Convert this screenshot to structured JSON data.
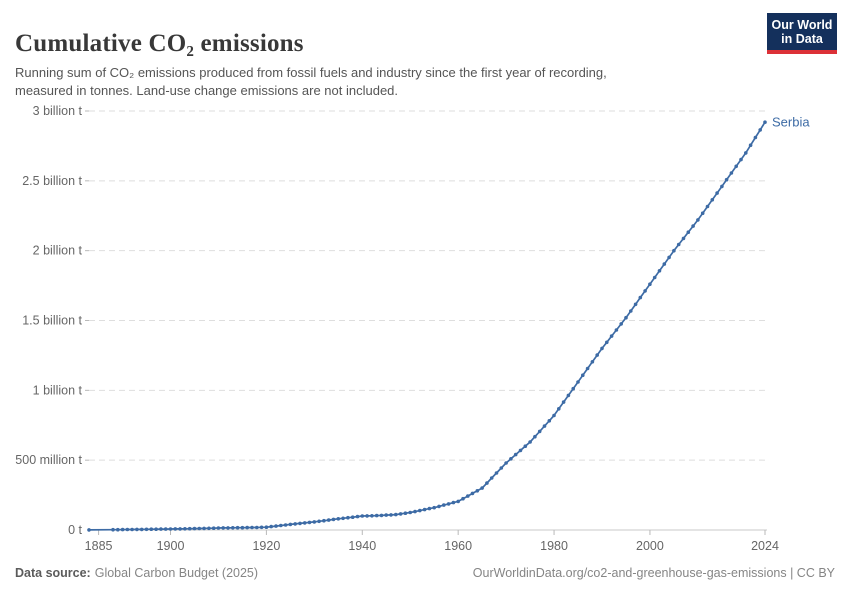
{
  "header": {
    "title": "Cumulative CO₂ emissions",
    "subtitle_line1": "Running sum of CO₂ emissions produced from fossil fuels and industry since the first year of recording,",
    "subtitle_line2": "measured in tonnes. Land-use change emissions are not included.",
    "logo": {
      "line1": "Our World",
      "line2": "in Data",
      "bg_color": "#14305c",
      "accent_color": "#dc3137",
      "text_color": "#ffffff"
    }
  },
  "footer": {
    "source_label": "Data source:",
    "source_value": "Global Carbon Budget (2025)",
    "rights": "OurWorldinData.org/co2-and-greenhouse-gas-emissions | CC BY"
  },
  "chart_data": {
    "type": "line",
    "title": "Cumulative CO₂ emissions",
    "value_unit": "million tonnes",
    "xlim": [
      1883,
      2024
    ],
    "ylim": [
      0,
      3000
    ],
    "grid": "horizontal-dashed",
    "legend_position": "end-of-line-label",
    "x_ticks": [
      1885,
      1900,
      1920,
      1940,
      1960,
      1980,
      2000,
      2024
    ],
    "y_ticks": [
      {
        "value": 0,
        "label": "0 t"
      },
      {
        "value": 500,
        "label": "500 million t"
      },
      {
        "value": 1000,
        "label": "1 billion t"
      },
      {
        "value": 1500,
        "label": "1.5 billion t"
      },
      {
        "value": 2000,
        "label": "2 billion t"
      },
      {
        "value": 2500,
        "label": "2.5 billion t"
      },
      {
        "value": 3000,
        "label": "3 billion t"
      }
    ],
    "axis_color": "#c8c8c8",
    "grid_color": "#dedede",
    "tick_label_color": "#666666",
    "series": [
      {
        "name": "Serbia",
        "color": "#3d6ba5",
        "points": [
          [
            1883,
            1
          ],
          [
            1888,
            2
          ],
          [
            1889,
            2.5
          ],
          [
            1890,
            3
          ],
          [
            1891,
            3.4
          ],
          [
            1892,
            3.8
          ],
          [
            1893,
            4.2
          ],
          [
            1894,
            4.6
          ],
          [
            1895,
            5
          ],
          [
            1896,
            5.4
          ],
          [
            1897,
            5.8
          ],
          [
            1898,
            6.2
          ],
          [
            1899,
            6.6
          ],
          [
            1900,
            7
          ],
          [
            1901,
            7.6
          ],
          [
            1902,
            8.2
          ],
          [
            1903,
            8.8
          ],
          [
            1904,
            9.4
          ],
          [
            1905,
            10
          ],
          [
            1906,
            10.8
          ],
          [
            1907,
            11.6
          ],
          [
            1908,
            12.4
          ],
          [
            1909,
            13.2
          ],
          [
            1910,
            14
          ],
          [
            1911,
            14.7
          ],
          [
            1912,
            15.3
          ],
          [
            1913,
            16
          ],
          [
            1914,
            16.4
          ],
          [
            1915,
            16.8
          ],
          [
            1916,
            17.2
          ],
          [
            1917,
            17.6
          ],
          [
            1918,
            18
          ],
          [
            1919,
            19
          ],
          [
            1920,
            20
          ],
          [
            1921,
            24
          ],
          [
            1922,
            28
          ],
          [
            1923,
            32
          ],
          [
            1924,
            36
          ],
          [
            1925,
            40
          ],
          [
            1926,
            43.6
          ],
          [
            1927,
            47.2
          ],
          [
            1928,
            50.8
          ],
          [
            1929,
            54.4
          ],
          [
            1930,
            58
          ],
          [
            1931,
            62.4
          ],
          [
            1932,
            66.8
          ],
          [
            1933,
            71.2
          ],
          [
            1934,
            75.6
          ],
          [
            1935,
            80
          ],
          [
            1936,
            84
          ],
          [
            1937,
            88
          ],
          [
            1938,
            92
          ],
          [
            1939,
            96
          ],
          [
            1940,
            100
          ],
          [
            1941,
            101
          ],
          [
            1942,
            102
          ],
          [
            1943,
            103
          ],
          [
            1944,
            104.8
          ],
          [
            1945,
            106.5
          ],
          [
            1946,
            108.2
          ],
          [
            1947,
            110
          ],
          [
            1948,
            115
          ],
          [
            1949,
            120
          ],
          [
            1950,
            125
          ],
          [
            1951,
            132
          ],
          [
            1952,
            139
          ],
          [
            1953,
            146
          ],
          [
            1954,
            153
          ],
          [
            1955,
            160
          ],
          [
            1956,
            169
          ],
          [
            1957,
            178
          ],
          [
            1958,
            187
          ],
          [
            1959,
            196
          ],
          [
            1960,
            205
          ],
          [
            1961,
            224
          ],
          [
            1962,
            243
          ],
          [
            1963,
            262
          ],
          [
            1964,
            281
          ],
          [
            1965,
            300
          ],
          [
            1966,
            336
          ],
          [
            1967,
            372
          ],
          [
            1968,
            408
          ],
          [
            1969,
            444
          ],
          [
            1970,
            480
          ],
          [
            1971,
            510
          ],
          [
            1972,
            540
          ],
          [
            1973,
            570
          ],
          [
            1974,
            600
          ],
          [
            1975,
            630
          ],
          [
            1976,
            668
          ],
          [
            1977,
            706
          ],
          [
            1978,
            744
          ],
          [
            1979,
            782
          ],
          [
            1980,
            820
          ],
          [
            1981,
            868
          ],
          [
            1982,
            916
          ],
          [
            1983,
            964
          ],
          [
            1984,
            1012
          ],
          [
            1985,
            1060
          ],
          [
            1986,
            1108
          ],
          [
            1987,
            1156
          ],
          [
            1988,
            1204
          ],
          [
            1989,
            1252
          ],
          [
            1990,
            1300
          ],
          [
            1991,
            1344
          ],
          [
            1992,
            1388
          ],
          [
            1993,
            1432
          ],
          [
            1994,
            1476
          ],
          [
            1995,
            1520
          ],
          [
            1996,
            1568
          ],
          [
            1997,
            1616
          ],
          [
            1998,
            1664
          ],
          [
            1999,
            1712
          ],
          [
            2000,
            1760
          ],
          [
            2001,
            1808
          ],
          [
            2002,
            1856
          ],
          [
            2003,
            1904
          ],
          [
            2004,
            1952
          ],
          [
            2005,
            2000
          ],
          [
            2006,
            2044
          ],
          [
            2007,
            2088
          ],
          [
            2008,
            2132
          ],
          [
            2009,
            2176
          ],
          [
            2010,
            2220
          ],
          [
            2011,
            2268
          ],
          [
            2012,
            2316
          ],
          [
            2013,
            2364
          ],
          [
            2014,
            2412
          ],
          [
            2015,
            2460
          ],
          [
            2016,
            2508
          ],
          [
            2017,
            2556
          ],
          [
            2018,
            2604
          ],
          [
            2019,
            2652
          ],
          [
            2020,
            2700
          ],
          [
            2021,
            2755
          ],
          [
            2022,
            2810
          ],
          [
            2023,
            2865
          ],
          [
            2024,
            2920
          ]
        ]
      }
    ]
  }
}
